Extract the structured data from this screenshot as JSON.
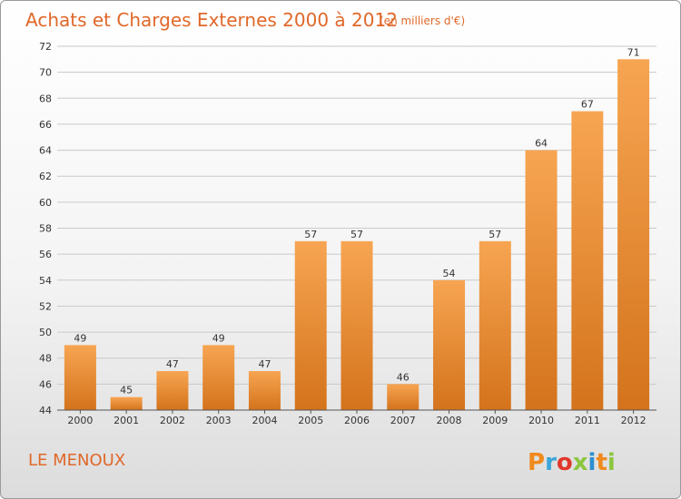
{
  "chart_data": {
    "type": "bar",
    "title": "Achats et Charges Externes 2000 à 2012",
    "subtitle": "(en milliers d'€)",
    "categories": [
      "2000",
      "2001",
      "2002",
      "2003",
      "2004",
      "2005",
      "2006",
      "2007",
      "2008",
      "2009",
      "2010",
      "2011",
      "2012"
    ],
    "values": [
      49,
      45,
      47,
      49,
      47,
      57,
      57,
      46,
      54,
      57,
      64,
      67,
      71
    ],
    "ylim": [
      44,
      72
    ],
    "yticks": [
      44,
      46,
      48,
      50,
      52,
      54,
      56,
      58,
      60,
      62,
      64,
      66,
      68,
      70,
      72
    ],
    "grid": true,
    "xlabel": "",
    "ylabel": "",
    "bar_color_top": "#f7a552",
    "bar_color_bottom": "#d4731c"
  },
  "place_name": "LE MENOUX",
  "logo": {
    "letters": [
      "P",
      "r",
      "o",
      "x",
      "i",
      "t",
      "i"
    ],
    "colors": [
      "#f08a1e",
      "#3aa5d8",
      "#e0382b",
      "#8cc63f",
      "#2a8fd0",
      "#f08a1e",
      "#8cc63f"
    ]
  }
}
